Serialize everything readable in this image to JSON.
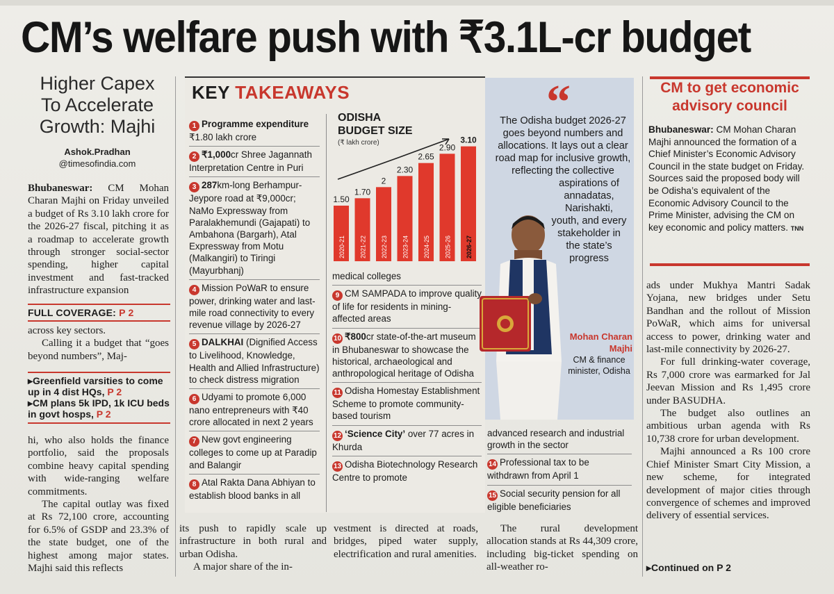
{
  "headline": "CM’s welfare push with ₹3.1L-cr budget",
  "lead_story": {
    "kicker": "Higher Capex To Accelerate Growth: Majhi",
    "byline_name": "Ashok.Pradhan",
    "byline_handle": "@timesofindia.com",
    "para1_place": "Bhubaneswar:",
    "para1_text": "CM Mohan Charan Majhi on Friday unveiled a budget of Rs 3.10 lakh crore for the 2026-27 fiscal, pitching it as a roadmap to accelerate growth through stronger social-sector spending, higher capital investment and fast-tracked infrastructure expansion",
    "full_coverage_label": "FULL COVERAGE:",
    "full_coverage_page": "P 2",
    "para2a": "across key sectors.",
    "para2b": "Calling it a budget that “goes beyond numbers”, Maj-",
    "pointer1_text": "Greenfield varsities to come up in 4 dist HQs,",
    "pointer1_page": "P 2",
    "pointer2_text": "CM plans 5k IPD, 1k ICU beds in govt hosps,",
    "pointer2_page": "P 2",
    "para3": "hi, who also holds the finance portfolio, said the proposals combine heavy capital spending with wide-ranging welfare commitments.",
    "para4": "The capital outlay was fixed at Rs 72,100 crore, accounting for 6.5% of GSDP and 23.3% of the state budget, one of the highest among major states. Majhi said this reflects",
    "bottom_col1a": "its push to rapidly scale up infrastructure in both rural and urban Odisha.",
    "bottom_col1b": "A major share of the in-",
    "bottom_col2": "vestment is directed at roads, bridges, piped water supply, electrification and rural amenities.",
    "bottom_col3": "The rural development allocation stands at Rs 44,309 crore, including big-ticket spending on all-weather ro-",
    "right_col_p1": "ads under Mukhya Mantri Sadak Yojana, new bridges under Setu Bandhan and the rollout of Mission PoWaR, which aims for universal access to power, drinking water and last-mile connectivity by 2026-27.",
    "right_col_p2": "For full drinking-water coverage, Rs 7,000 crore was earmarked for Jal Jeevan Mission and Rs 1,495 crore under BASUDHA.",
    "right_col_p3": "The budget also outlines an ambitious urban agenda with Rs 10,738 crore for urban development.",
    "right_col_p4": "Majhi announced a Rs 100 crore Chief Minister Smart City Mission, a new scheme, for integrated development of major cities through convergence of schemes and improved delivery of essential services.",
    "continued": "Continued on P 2"
  },
  "key_takeaways": {
    "title_part1": "KEY",
    "title_part2": "TAKEAWAYS",
    "items": [
      {
        "n": "1",
        "bold": "Programme expenditure",
        "text": "₹1.80 lakh crore"
      },
      {
        "n": "2",
        "bold": "₹1,000",
        "text": "cr Shree Jagannath Interpretation Centre in Puri"
      },
      {
        "n": "3",
        "bold": "287",
        "text": "km-long Berhampur-Jeypore road at ₹9,000cr; NaMo Expressway from Paralakhemundi (Gajapati) to Ambahona (Bargarh), Atal Expressway from Motu (Malkangiri) to Tiringi (Mayurbhanj)"
      },
      {
        "n": "4",
        "bold": "",
        "text": "Mission PoWaR to ensure power, drinking water and last-mile road connectivity to every revenue village by 2026-27"
      },
      {
        "n": "5",
        "bold": "DALKHAI",
        "text": " (Dignified Access to Livelihood, Knowledge, Health and Allied Infrastructure) to check distress migration"
      },
      {
        "n": "6",
        "bold": "",
        "text": "Udyami to promote 6,000 nano entrepreneurs with ₹40 crore allocated in next 2 years"
      },
      {
        "n": "7",
        "bold": "",
        "text": "New govt engineering colleges to come up at Paradip and Balangir"
      },
      {
        "n": "8",
        "bold": "",
        "text": "Atal Rakta Dana Abhiyan to establish blood banks in all"
      },
      {
        "n": "",
        "bold": "",
        "text": "medical colleges"
      },
      {
        "n": "9",
        "bold": "",
        "text": "CM SAMPADA to improve quality of life for residents in mining-affected areas"
      },
      {
        "n": "10",
        "bold": "₹800",
        "text": "cr state-of-the-art museum in Bhubaneswar to showcase the historical, archaeological and anthropological heritage of Odisha"
      },
      {
        "n": "11",
        "bold": "",
        "text": "Odisha Homestay Establishment Scheme to promote community-based tourism"
      },
      {
        "n": "12",
        "bold": "‘Science City’",
        "text": " over 77 acres in Khurda"
      },
      {
        "n": "13",
        "bold": "",
        "text": "Odisha Biotechnology Research Centre to promote"
      },
      {
        "n": "",
        "bold": "",
        "text": "advanced research and industrial growth in the sector"
      },
      {
        "n": "14",
        "bold": "",
        "text": "Professional tax to be withdrawn from April 1"
      },
      {
        "n": "15",
        "bold": "",
        "text": "Social security pension for all eligible beneficiaries"
      }
    ]
  },
  "quote": {
    "mark": "“",
    "text_a": "The Odisha budget 2026-27 goes beyond numbers and allocations. It lays out a clear road map for inclusive growth, reflecting the collective",
    "text_b": "aspirations of annadatas, Narishakti, youth, and every stakeholder in the state’s progress",
    "name": "Mohan Charan Majhi",
    "role": "CM & finance minister, Odisha"
  },
  "sidebar": {
    "title": "CM to get economic advisory council",
    "place": "Bhubaneswar:",
    "text": "CM Mohan Charan Majhi announced the formation of a Chief Minister’s Economic Advisory Council in the state budget on Friday. Sources said the proposed body will be Odisha’s equivalent of the Economic Advisory Council to the Prime Minister, advising the CM on key economic and policy matters.",
    "credit": "TNN"
  },
  "colors": {
    "accent": "#c8372d",
    "quote_bg": "#cfd7e3"
  },
  "chart_data": {
    "type": "bar",
    "title": "ODISHA BUDGET SIZE",
    "subtitle": "(₹ lakh crore)",
    "categories": [
      "2020-21",
      "2021-22",
      "2022-23",
      "2023-24",
      "2024-25",
      "2025-26",
      "2026-27"
    ],
    "values": [
      1.5,
      1.7,
      2,
      2.3,
      2.65,
      2.9,
      3.1
    ],
    "value_labels": [
      "1.50",
      "1.70",
      "2",
      "2.30",
      "2.65",
      "2.90",
      "3.10"
    ],
    "ylim": [
      0,
      3.3
    ],
    "bar_color": "#e0392c",
    "trend_arrow": true
  }
}
